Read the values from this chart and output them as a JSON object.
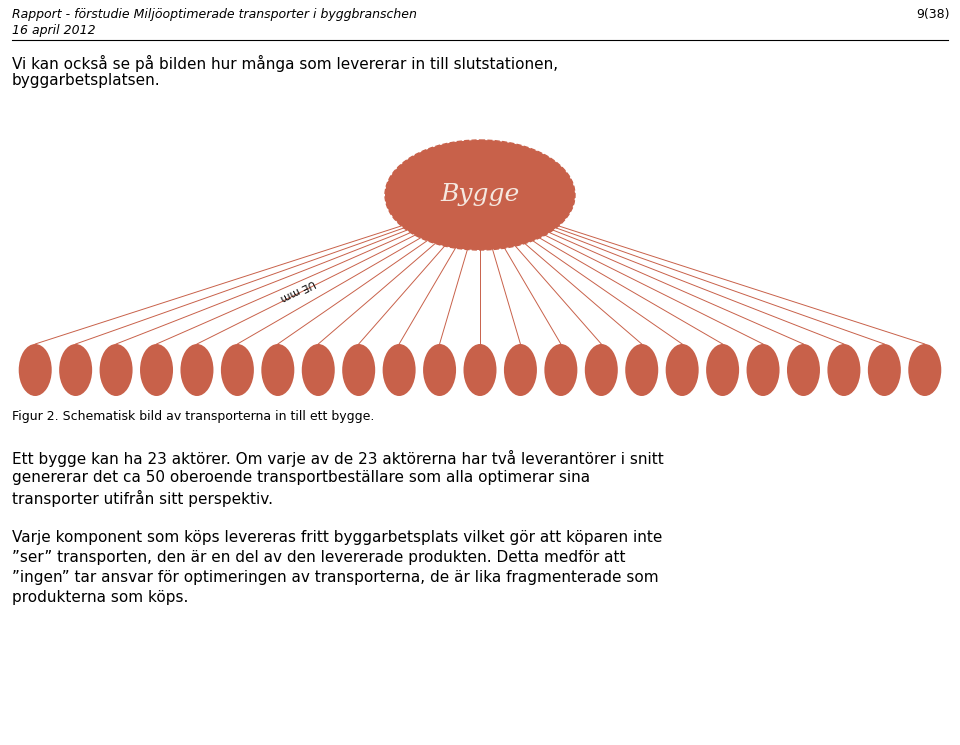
{
  "title_line1": "Rapport - förstudie Miljöoptimerade transporter i byggbranschen",
  "title_line2": "16 april 2012",
  "page_num": "9(38)",
  "intro_text_line1": "Vi kan också se på bilden hur många som levererar in till slutstationen,",
  "intro_text_line2": "byggarbetsplatsen.",
  "fig_caption": "Figur 2. Schematisk bild av transporterna in till ett bygge.",
  "para1_line1": "Ett bygge kan ha 23 aktörer. Om varje av de 23 aktörerna har två leverantörer i snitt",
  "para1_line2": "genererar det ca 50 oberoende transportbeställare som alla optimerar sina",
  "para1_line3": "transporter utifrån sitt perspektiv.",
  "para2_line1": "Varje komponent som köps levereras fritt byggarbetsplats vilket gör att köparen inte",
  "para2_line2": "”ser” transporten, den är en del av den levererade produkten. Detta medför att",
  "para2_line3": "”ingen” tar ansvar för optimeringen av transporterna, de är lika fragmenterade som",
  "para2_line4": "produkterna som köps.",
  "circle_color": "#c8614a",
  "line_color": "#c8614a",
  "bg_color": "#ffffff",
  "text_color": "#000000",
  "center_label": "Bygge",
  "center_label_color": "#f5e8e0",
  "num_ovals": 23,
  "ue_label": "UE mm",
  "ue_label_oval_index": 4
}
